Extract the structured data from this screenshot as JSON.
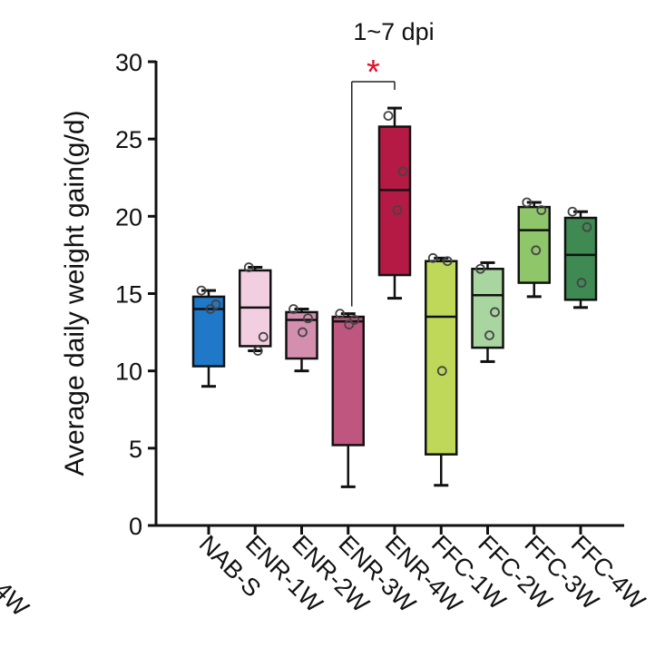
{
  "chart_data": {
    "type": "box",
    "title": "1~7 dpi",
    "xlabel": "",
    "ylabel": "Average daily weight gain(g/d)",
    "ylim": [
      0,
      30
    ],
    "yticks": [
      0,
      5,
      10,
      15,
      20,
      25,
      30
    ],
    "ytick_labels": [
      "0",
      "5",
      "10",
      "15",
      "20",
      "25",
      "30"
    ],
    "categories": [
      "NAB-S",
      "ENR-1W",
      "ENR-2W",
      "ENR-3W",
      "ENR-4W",
      "FFC-1W",
      "FFC-2W",
      "FFC-3W",
      "FFC-4W"
    ],
    "boxes": [
      {
        "category": "NAB-S",
        "min": 9.0,
        "q1": 10.3,
        "median": 14.0,
        "q3": 14.8,
        "max": 15.2,
        "points": [
          15.2,
          14.3,
          14.0
        ],
        "color": "#1f78c8"
      },
      {
        "category": "ENR-1W",
        "min": 11.3,
        "q1": 11.6,
        "median": 14.1,
        "q3": 16.5,
        "max": 16.7,
        "points": [
          16.7,
          12.2,
          11.3
        ],
        "color": "#f2cfe0"
      },
      {
        "category": "ENR-2W",
        "min": 10.0,
        "q1": 10.8,
        "median": 13.3,
        "q3": 13.8,
        "max": 14.0,
        "points": [
          14.0,
          13.4,
          12.5
        ],
        "color": "#d48faf"
      },
      {
        "category": "ENR-3W",
        "min": 2.5,
        "q1": 5.2,
        "median": 13.2,
        "q3": 13.5,
        "max": 13.7,
        "points": [
          13.7,
          13.3,
          13.0
        ],
        "color": "#bf5680"
      },
      {
        "category": "ENR-4W",
        "min": 14.7,
        "q1": 16.2,
        "median": 21.7,
        "q3": 25.8,
        "max": 27.0,
        "points": [
          26.5,
          22.9,
          20.4
        ],
        "color": "#b51a45"
      },
      {
        "category": "FFC-1W",
        "min": 2.6,
        "q1": 4.6,
        "median": 13.5,
        "q3": 17.1,
        "max": 17.3,
        "points": [
          17.3,
          17.1,
          10.0
        ],
        "color": "#bfd85a"
      },
      {
        "category": "FFC-2W",
        "min": 10.6,
        "q1": 11.5,
        "median": 14.9,
        "q3": 16.6,
        "max": 17.0,
        "points": [
          16.6,
          13.8,
          12.3
        ],
        "color": "#a9d5a0"
      },
      {
        "category": "FFC-3W",
        "min": 14.8,
        "q1": 15.7,
        "median": 19.1,
        "q3": 20.6,
        "max": 20.9,
        "points": [
          20.9,
          20.4,
          17.8
        ],
        "color": "#8fc66a"
      },
      {
        "category": "FFC-4W",
        "min": 14.1,
        "q1": 14.6,
        "median": 17.5,
        "q3": 19.9,
        "max": 20.3,
        "points": [
          20.3,
          19.3,
          15.7
        ],
        "color": "#3f8a52"
      }
    ],
    "annotations": [
      {
        "type": "significance",
        "text": "*",
        "from": "ENR-3W",
        "to": "ENR-4W",
        "color": "#e0102a"
      }
    ],
    "edge_fragment_text": "4W"
  }
}
